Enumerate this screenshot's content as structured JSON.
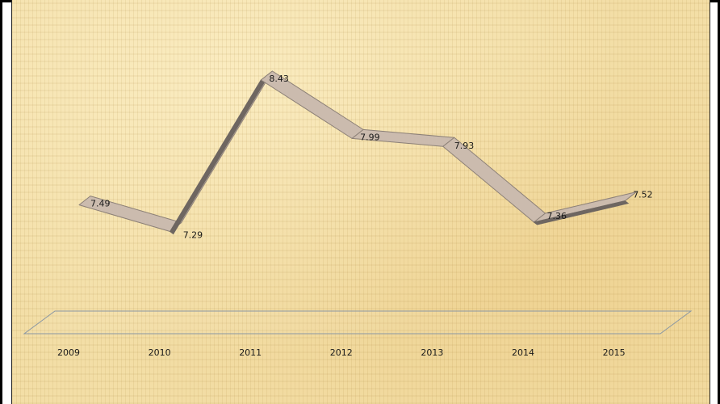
{
  "chart_data": {
    "type": "line",
    "categories": [
      "2009",
      "2010",
      "2011",
      "2012",
      "2013",
      "2014",
      "2015"
    ],
    "values": [
      7.49,
      7.29,
      8.43,
      7.99,
      7.93,
      7.36,
      7.52
    ],
    "data_labels": [
      "7.49",
      "7.29",
      "8.43",
      "7.99",
      "7.93",
      "7.36",
      "7.52"
    ],
    "title": "",
    "xlabel": "",
    "ylabel": "",
    "grid": false,
    "legend": "none",
    "colors": {
      "ribbon_top": "#cbbbae",
      "ribbon_side": "#6e6661",
      "ribbon_stroke": "#8c8077",
      "floor_stroke": "#8a97a3",
      "background": "#f3dea6"
    }
  }
}
